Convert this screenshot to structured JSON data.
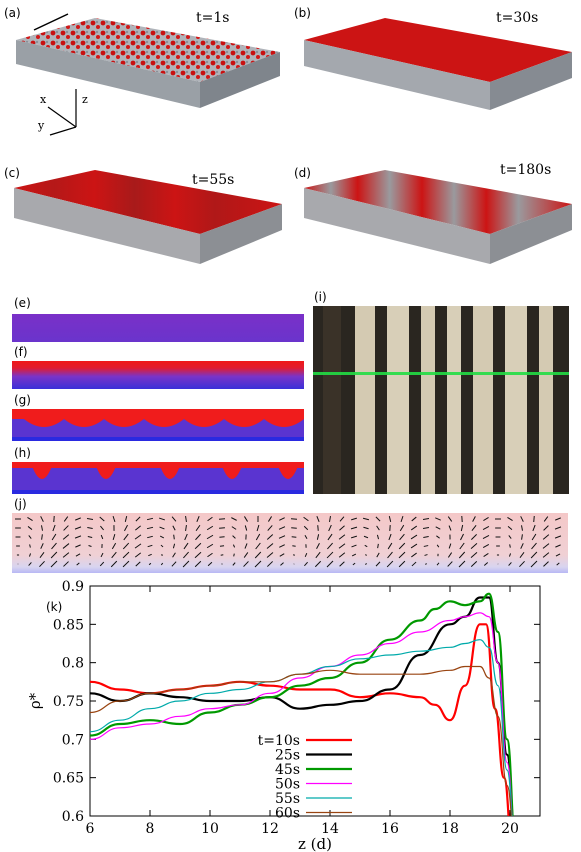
{
  "panels": {
    "a": {
      "label": "(a)",
      "time": "t=1s"
    },
    "b": {
      "label": "(b)",
      "time": "t=30s"
    },
    "c": {
      "label": "(c)",
      "time": "t=55s"
    },
    "d": {
      "label": "(d)",
      "time": "t=180s"
    },
    "e": {
      "label": "(e)"
    },
    "f": {
      "label": "(f)"
    },
    "g": {
      "label": "(g)"
    },
    "h": {
      "label": "(h)"
    },
    "i": {
      "label": "(i)"
    },
    "j": {
      "label": "(j)"
    },
    "k": {
      "label": "(k)"
    }
  },
  "axes_triad": {
    "x": "x",
    "y": "y",
    "z": "z"
  },
  "colors": {
    "particle_red": "#d01010",
    "particle_gray": "#9aa0a8",
    "density_blue": "#3a30d8",
    "density_red": "#f02020",
    "photo_dark": "#2a2620",
    "photo_light": "#d8cfb8",
    "laser_green": "#22dd44"
  },
  "chart_data": {
    "type": "line",
    "xlabel": "z (d)",
    "ylabel": "ρ*",
    "xlim": [
      6,
      21
    ],
    "ylim": [
      0.6,
      0.9
    ],
    "xticks": [
      6,
      8,
      10,
      12,
      14,
      16,
      18,
      20
    ],
    "yticks": [
      0.6,
      0.65,
      0.7,
      0.75,
      0.8,
      0.85,
      0.9
    ],
    "legend_position": "bottom-center",
    "series": [
      {
        "name": "t=10s",
        "color": "#ff0000",
        "width": 2.2,
        "x": [
          6,
          7,
          8,
          9,
          10,
          11,
          12,
          13,
          14,
          15,
          16,
          17,
          17.5,
          18,
          18.5,
          19,
          19.2,
          19.5,
          19.8,
          20.1
        ],
        "y": [
          0.775,
          0.765,
          0.76,
          0.765,
          0.77,
          0.775,
          0.77,
          0.765,
          0.765,
          0.755,
          0.76,
          0.755,
          0.745,
          0.725,
          0.77,
          0.85,
          0.85,
          0.74,
          0.65,
          0.55
        ]
      },
      {
        "name": "25s",
        "color": "#000000",
        "width": 2.2,
        "x": [
          6,
          7,
          8,
          9,
          10,
          11,
          12,
          13,
          14,
          15,
          16,
          17,
          18,
          18.5,
          19,
          19.3,
          19.6,
          19.9,
          20.2
        ],
        "y": [
          0.76,
          0.75,
          0.76,
          0.755,
          0.75,
          0.75,
          0.755,
          0.74,
          0.745,
          0.75,
          0.765,
          0.81,
          0.85,
          0.86,
          0.885,
          0.885,
          0.8,
          0.68,
          0.56
        ]
      },
      {
        "name": "45s",
        "color": "#009900",
        "width": 2.2,
        "x": [
          6,
          7,
          8,
          9,
          10,
          11,
          12,
          13,
          14,
          15,
          16,
          17,
          17.5,
          18,
          18.5,
          19,
          19.3,
          19.6,
          19.9,
          20.2
        ],
        "y": [
          0.705,
          0.72,
          0.725,
          0.72,
          0.735,
          0.745,
          0.755,
          0.77,
          0.78,
          0.8,
          0.83,
          0.855,
          0.87,
          0.88,
          0.875,
          0.88,
          0.89,
          0.84,
          0.7,
          0.56
        ]
      },
      {
        "name": "50s",
        "color": "#ff00ff",
        "width": 1.2,
        "x": [
          6,
          7,
          8,
          9,
          10,
          11,
          12,
          13,
          14,
          15,
          16,
          17,
          18,
          18.5,
          19,
          19.3,
          19.6,
          19.9,
          20.2
        ],
        "y": [
          0.7,
          0.715,
          0.72,
          0.73,
          0.74,
          0.745,
          0.76,
          0.78,
          0.795,
          0.81,
          0.825,
          0.84,
          0.855,
          0.86,
          0.865,
          0.86,
          0.8,
          0.67,
          0.55
        ]
      },
      {
        "name": "55s",
        "color": "#00aaaa",
        "width": 1.2,
        "x": [
          6,
          7,
          8,
          9,
          10,
          11,
          12,
          13,
          14,
          15,
          16,
          17,
          18,
          18.5,
          19,
          19.3,
          19.6,
          19.9,
          20.2
        ],
        "y": [
          0.71,
          0.725,
          0.74,
          0.75,
          0.76,
          0.765,
          0.775,
          0.785,
          0.795,
          0.805,
          0.81,
          0.815,
          0.82,
          0.825,
          0.83,
          0.82,
          0.77,
          0.66,
          0.55
        ]
      },
      {
        "name": "60s",
        "color": "#994411",
        "width": 1.2,
        "x": [
          6,
          7,
          8,
          9,
          10,
          11,
          12,
          13,
          14,
          15,
          16,
          17,
          18,
          18.5,
          19,
          19.3,
          19.6,
          19.9,
          20.2
        ],
        "y": [
          0.735,
          0.75,
          0.76,
          0.765,
          0.77,
          0.775,
          0.775,
          0.785,
          0.79,
          0.785,
          0.785,
          0.785,
          0.79,
          0.795,
          0.795,
          0.78,
          0.73,
          0.64,
          0.55
        ]
      }
    ]
  }
}
